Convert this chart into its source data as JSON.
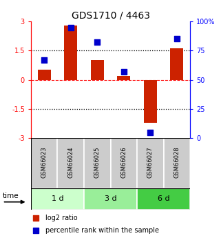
{
  "title": "GDS1710 / 4463",
  "samples": [
    "GSM66023",
    "GSM66024",
    "GSM66025",
    "GSM66026",
    "GSM66027",
    "GSM66028"
  ],
  "log2_ratio": [
    0.5,
    2.8,
    1.0,
    0.2,
    -2.2,
    1.6
  ],
  "percentile_rank": [
    67,
    95,
    82,
    57,
    5,
    85
  ],
  "groups": [
    {
      "label": "1 d",
      "indices": [
        0,
        1
      ],
      "color": "#ccffcc"
    },
    {
      "label": "3 d",
      "indices": [
        2,
        3
      ],
      "color": "#99ee99"
    },
    {
      "label": "6 d",
      "indices": [
        4,
        5
      ],
      "color": "#44cc44"
    }
  ],
  "ylim_left": [
    -3,
    3
  ],
  "ylim_right": [
    0,
    100
  ],
  "yticks_left": [
    -3,
    -1.5,
    0,
    1.5,
    3
  ],
  "ytick_labels_left": [
    "-3",
    "-1.5",
    "0",
    "1.5",
    "3"
  ],
  "yticks_right": [
    0,
    25,
    50,
    75,
    100
  ],
  "ytick_labels_right": [
    "0",
    "25",
    "50",
    "75",
    "100%"
  ],
  "bar_color": "#cc2200",
  "dot_color": "#0000cc",
  "bar_width": 0.5,
  "dot_size": 35,
  "legend_items": [
    {
      "label": "log2 ratio",
      "color": "#cc2200"
    },
    {
      "label": "percentile rank within the sample",
      "color": "#0000cc"
    }
  ],
  "sample_bg_color": "#cccccc",
  "time_label": "time"
}
